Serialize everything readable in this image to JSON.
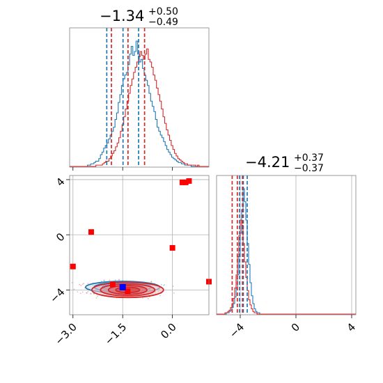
{
  "chart_data": {
    "type": "corner",
    "parameters": [
      {
        "title_value": "−1.34",
        "title_plus": "+0.50",
        "title_minus": "−0.49",
        "xlim": [
          -3.1,
          1.1
        ],
        "ticks": [
          -3.0,
          -1.5,
          0.0
        ],
        "tick_labels": [
          "−3.0",
          "−1.5",
          "0.0"
        ]
      },
      {
        "title_value": "−4.21",
        "title_plus": "+0.37",
        "title_minus": "−0.37",
        "xlim": [
          -5.7,
          4.3
        ],
        "ticks": [
          -4,
          0,
          4
        ],
        "tick_labels": [
          "−4",
          "0",
          "4"
        ]
      }
    ],
    "grid": true,
    "colors": {
      "series_a": "#1f77b4",
      "series_b": "#d62728",
      "points": "#ff0000",
      "truth": "#0000ff"
    },
    "hist_param1": {
      "bin_edges": [
        -3.1,
        1.1
      ],
      "series": [
        {
          "color": "#1f77b4",
          "counts": [
            0,
            0,
            0,
            0,
            0,
            0,
            0,
            0,
            0,
            0,
            0,
            1,
            1,
            2,
            2,
            3,
            4,
            4,
            6,
            9,
            11,
            14,
            16,
            18,
            21,
            24,
            27,
            30,
            36,
            41,
            49,
            55,
            62,
            67,
            70,
            72,
            78,
            86,
            92,
            85,
            88,
            96,
            86,
            80,
            82,
            75,
            70,
            66,
            62,
            56,
            50,
            46,
            42,
            36,
            30,
            27,
            24,
            22,
            19,
            16,
            13,
            11,
            9,
            7,
            6,
            5,
            4,
            3,
            3,
            2,
            2,
            1,
            1,
            1,
            1,
            0,
            0,
            0,
            0,
            0,
            0,
            0,
            0,
            0,
            0,
            0
          ]
        },
        {
          "color": "#d62728",
          "counts": [
            0,
            0,
            0,
            0,
            0,
            0,
            0,
            0,
            0,
            0,
            0,
            0,
            0,
            0,
            0,
            0,
            1,
            1,
            1,
            1,
            2,
            3,
            4,
            4,
            6,
            8,
            10,
            12,
            15,
            18,
            22,
            27,
            32,
            38,
            44,
            50,
            56,
            62,
            67,
            72,
            76,
            80,
            84,
            88,
            85,
            82,
            86,
            90,
            82,
            80,
            76,
            70,
            66,
            60,
            55,
            50,
            44,
            38,
            33,
            28,
            24,
            20,
            16,
            13,
            10,
            8,
            6,
            5,
            4,
            3,
            2,
            2,
            1,
            1,
            1,
            1,
            1,
            0,
            1,
            0,
            0,
            0,
            0,
            0,
            0
          ]
        }
      ],
      "quantile_lines": [
        {
          "color": "#1f77b4",
          "values": [
            -1.98,
            -1.49,
            -1.02
          ]
        },
        {
          "color": "#d62728",
          "values": [
            -1.84,
            -1.34,
            -0.84
          ]
        }
      ]
    },
    "hist_param2": {
      "bin_edges": [
        -5.7,
        4.3
      ],
      "series": [
        {
          "color": "#1f77b4",
          "counts": [
            0,
            0,
            0,
            0,
            0,
            0,
            0,
            1,
            1,
            2,
            3,
            5,
            8,
            13,
            20,
            30,
            44,
            62,
            80,
            96,
            86,
            72,
            54,
            38,
            24,
            14,
            8,
            4,
            2,
            1,
            1,
            0,
            0,
            0,
            0,
            0,
            0,
            0,
            0,
            0,
            0,
            0,
            0,
            0,
            0,
            0,
            0,
            0,
            0,
            0,
            0,
            0,
            0,
            0,
            0,
            0,
            0,
            0,
            0,
            0,
            0,
            0,
            0,
            0,
            0,
            0,
            0,
            0,
            0,
            0,
            0,
            0,
            0,
            0,
            0,
            0,
            0,
            0,
            0,
            0,
            0,
            0,
            0,
            0,
            0,
            0,
            0,
            0,
            0,
            0,
            0,
            0,
            0,
            0,
            0,
            0,
            0,
            0,
            0,
            0
          ]
        },
        {
          "color": "#d62728",
          "counts": [
            0,
            0,
            0,
            0,
            0,
            0,
            1,
            1,
            2,
            3,
            5,
            8,
            12,
            20,
            30,
            44,
            60,
            72,
            68,
            54,
            40,
            28,
            18,
            11,
            7,
            4,
            2,
            1,
            1,
            0,
            0,
            0,
            0,
            0,
            0,
            0,
            0,
            0,
            0,
            0,
            0,
            0,
            0,
            0,
            0,
            0,
            0,
            0,
            0,
            0,
            0,
            0,
            0,
            0,
            0,
            0,
            0,
            0,
            0,
            0,
            0,
            0,
            0,
            0,
            0,
            0,
            0,
            0,
            0,
            0,
            0,
            0,
            0,
            0,
            0,
            0,
            0,
            0,
            0,
            0,
            0,
            0,
            0,
            0,
            0,
            0,
            0,
            0,
            0,
            0,
            0,
            0,
            0,
            0,
            0,
            0,
            0,
            0,
            0,
            0
          ]
        }
      ],
      "quantile_lines": [
        {
          "color": "#1f77b4",
          "values": [
            -4.05,
            -3.78,
            -3.5
          ]
        },
        {
          "color": "#d62728",
          "values": [
            -4.58,
            -4.21,
            -3.84
          ]
        }
      ]
    },
    "joint": {
      "xlim": [
        -3.1,
        1.1
      ],
      "ylim": [
        -5.8,
        4.3
      ],
      "contours": [
        {
          "color": "#1f77b4",
          "cx": -1.5,
          "cy": -3.8,
          "rx": [
            1.12,
            0.86,
            0.62,
            0.38
          ],
          "ry": [
            0.42,
            0.33,
            0.24,
            0.15
          ]
        },
        {
          "color": "#d62728",
          "cx": -1.35,
          "cy": -4.0,
          "rx": [
            1.08,
            0.82,
            0.58,
            0.36
          ],
          "ry": [
            0.55,
            0.43,
            0.32,
            0.2
          ]
        }
      ],
      "outliers": [
        {
          "x": -3.0,
          "y": -2.3
        },
        {
          "x": -2.45,
          "y": 0.2
        },
        {
          "x": 0.0,
          "y": -0.95
        },
        {
          "x": 0.3,
          "y": 3.8
        },
        {
          "x": 0.4,
          "y": 3.8
        },
        {
          "x": 0.5,
          "y": 3.9
        },
        {
          "x": 1.1,
          "y": -3.4
        },
        {
          "x": -1.8,
          "y": -3.6
        },
        {
          "x": -1.35,
          "y": -4.1
        }
      ],
      "truth": {
        "x": -1.5,
        "y": -3.8
      },
      "y_ticks": [
        -4,
        0,
        4
      ],
      "y_tick_labels": [
        "−4",
        "0",
        "4"
      ]
    }
  }
}
